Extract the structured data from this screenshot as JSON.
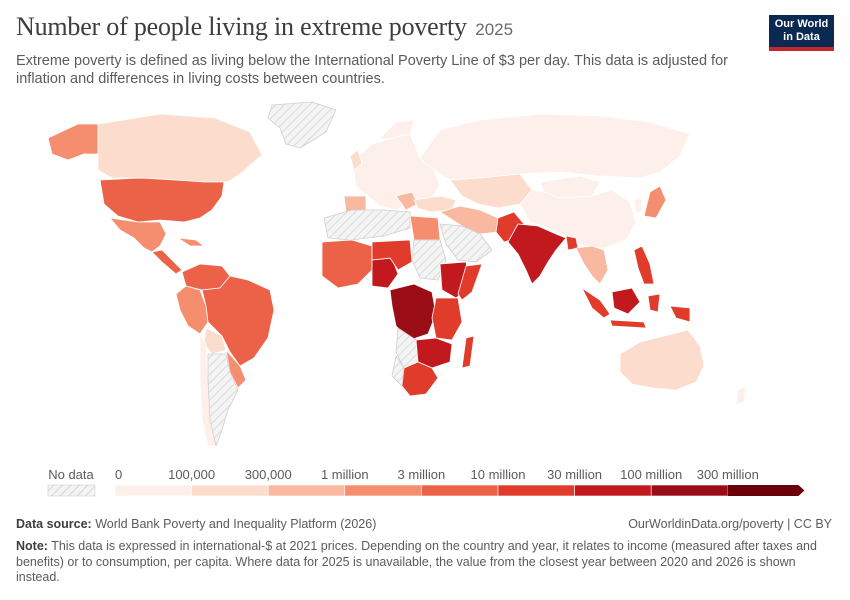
{
  "header": {
    "title": "Number of people living in extreme poverty",
    "year": "2025",
    "subtitle": "Extreme poverty is defined as living below the International Poverty Line of $3 per day. This data is adjusted for inflation and differences in living costs between countries."
  },
  "logo": {
    "line1": "Our World",
    "line2": "in Data",
    "bg": "#0b2a52",
    "accent": "#c4262e"
  },
  "legend": {
    "no_data_label": "No data",
    "bins": [
      "0",
      "100,000",
      "300,000",
      "1 million",
      "3 million",
      "10 million",
      "30 million",
      "100 million",
      "300 million"
    ],
    "colors": [
      "#fdf0ea",
      "#fcdccd",
      "#f9b9a0",
      "#f48e6f",
      "#ec6248",
      "#e03b2b",
      "#c2191f",
      "#9b0d16",
      "#6a0009"
    ]
  },
  "footer": {
    "source_label": "Data source:",
    "source_text": "World Bank Poverty and Inequality Platform (2026)",
    "link": "OurWorldinData.org/poverty | CC BY",
    "note_label": "Note:",
    "note_text": "This data is expressed in international-$ at 2021 prices. Depending on the country and year, it relates to income (measured after taxes and benefits) or to consumption, per capita. Where data for 2025 is unavailable, the value from the closest year between 2020 and 2026 is shown instead."
  }
}
